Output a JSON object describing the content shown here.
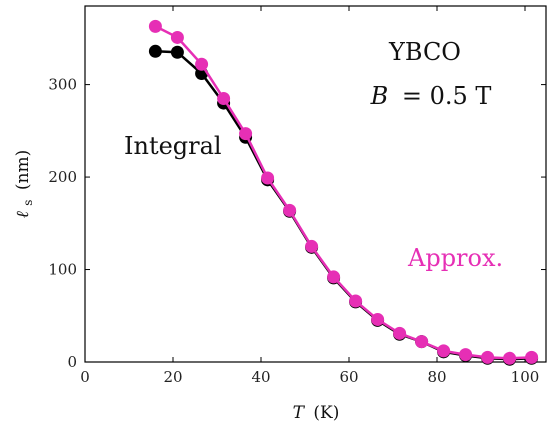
{
  "chart_data": {
    "type": "line",
    "xlabel_var": "T",
    "xlabel_unit": "(K)",
    "ylabel_var": "ℓ",
    "ylabel_sub": "s",
    "ylabel_unit": "(nm)",
    "xlim": [
      0,
      105
    ],
    "ylim": [
      0,
      385
    ],
    "x_ticks": [
      0,
      20,
      40,
      60,
      80,
      100
    ],
    "y_ticks": [
      0,
      100,
      200,
      300
    ],
    "grid": false,
    "annotations": {
      "material": "YBCO",
      "field_var": "B",
      "field_value": "= 0.5 T",
      "integral_label": "Integral",
      "approx_label": "Approx."
    },
    "series": [
      {
        "name": "Integral",
        "color": "#000000",
        "x": [
          16,
          21,
          26.5,
          31.5,
          36.5,
          41.5,
          46.5,
          51.5,
          56.5,
          61.5,
          66.5,
          71.5,
          76.5,
          81.5,
          86.5,
          91.5,
          96.5,
          101.5
        ],
        "y": [
          336,
          335,
          312,
          280,
          243,
          197,
          163,
          124,
          91,
          65,
          45,
          30,
          22,
          11,
          7,
          4,
          3,
          4
        ]
      },
      {
        "name": "Approx.",
        "color": "#e62fb5",
        "x": [
          16,
          21,
          26.5,
          31.5,
          36.5,
          41.5,
          46.5,
          51.5,
          56.5,
          61.5,
          66.5,
          71.5,
          76.5,
          81.5,
          86.5,
          91.5,
          96.5,
          101.5
        ],
        "y": [
          363,
          351,
          322,
          285,
          247,
          199,
          164,
          125,
          92,
          66,
          46,
          31,
          22,
          12,
          8,
          5,
          4,
          5
        ]
      }
    ]
  }
}
